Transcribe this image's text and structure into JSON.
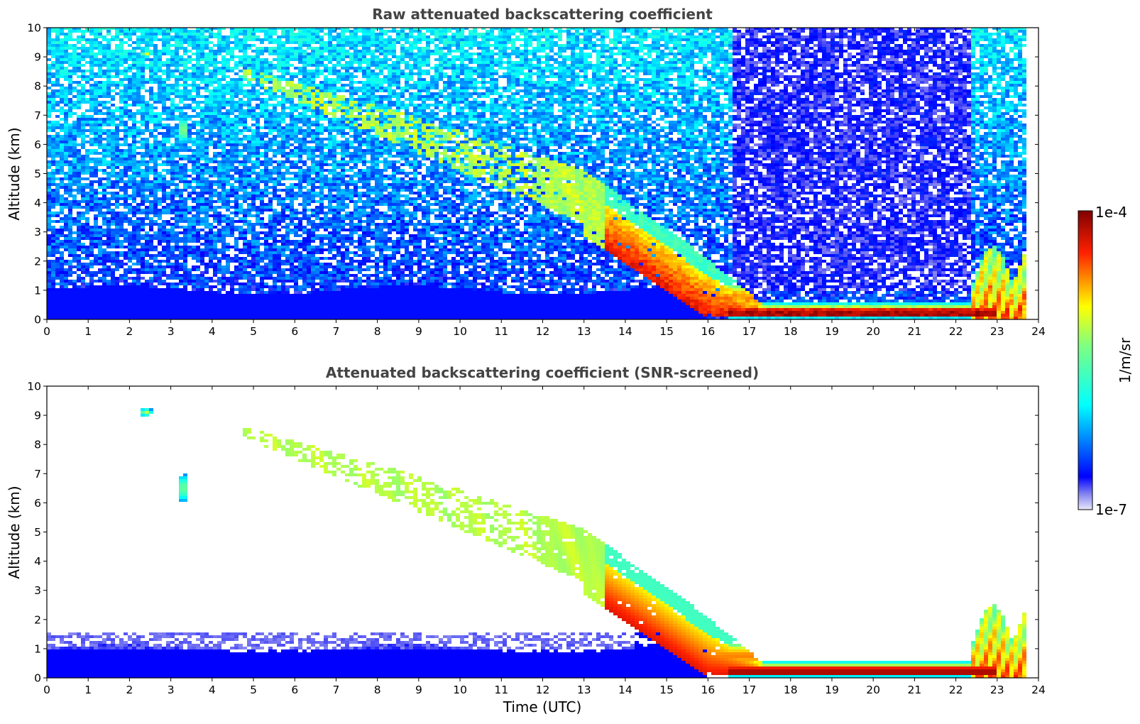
{
  "chart_data": [
    {
      "type": "heatmap",
      "title": "Raw attenuated backscattering coefficient",
      "xlabel": "",
      "ylabel": "Altitude (km)",
      "xlim": [
        0,
        24
      ],
      "ylim": [
        0,
        10
      ],
      "xticks": [
        "0",
        "1",
        "2",
        "3",
        "4",
        "5",
        "6",
        "7",
        "8",
        "9",
        "10",
        "11",
        "12",
        "13",
        "14",
        "15",
        "16",
        "17",
        "18",
        "19",
        "20",
        "21",
        "22",
        "23",
        "24"
      ],
      "yticks": [
        "0",
        "1",
        "2",
        "3",
        "4",
        "5",
        "6",
        "7",
        "8",
        "9",
        "10"
      ],
      "grid": false,
      "data_end_hour": 23.7,
      "screened": false,
      "features": [
        {
          "desc": "noise background",
          "x": [
            0,
            23.7
          ],
          "y": [
            1,
            10
          ]
        },
        {
          "desc": "boundary layer aerosol",
          "x": [
            0,
            16
          ],
          "y": [
            0,
            1
          ]
        },
        {
          "desc": "isolated cirrus",
          "x": [
            2.2,
            2.6
          ],
          "y": [
            9.0,
            9.2
          ]
        },
        {
          "desc": "isolated cirrus",
          "x": [
            3.1,
            3.5
          ],
          "y": [
            5.9,
            7.3
          ]
        },
        {
          "desc": "descending cloud band",
          "x": [
            4.8,
            16
          ],
          "y": [
            0.5,
            8.5
          ]
        },
        {
          "desc": "low cloud / rain",
          "x": [
            16,
            23
          ],
          "y": [
            0.1,
            0.5
          ]
        },
        {
          "desc": "late convective cloud",
          "x": [
            22.5,
            23.7
          ],
          "y": [
            0,
            2.6
          ]
        }
      ]
    },
    {
      "type": "heatmap",
      "title": "Attenuated backscattering coefficient (SNR-screened)",
      "xlabel": "Time (UTC)",
      "ylabel": "Altitude (km)",
      "xlim": [
        0,
        24
      ],
      "ylim": [
        0,
        10
      ],
      "xticks": [
        "0",
        "1",
        "2",
        "3",
        "4",
        "5",
        "6",
        "7",
        "8",
        "9",
        "10",
        "11",
        "12",
        "13",
        "14",
        "15",
        "16",
        "17",
        "18",
        "19",
        "20",
        "21",
        "22",
        "23",
        "24"
      ],
      "yticks": [
        "0",
        "1",
        "2",
        "3",
        "4",
        "5",
        "6",
        "7",
        "8",
        "9",
        "10"
      ],
      "grid": false,
      "data_end_hour": 23.7,
      "screened": true
    }
  ],
  "colorbar": {
    "max_label": "1e-4",
    "min_label": "1e-7",
    "label": "1/m/sr",
    "colormap": "jet",
    "range_exponent": [
      -7,
      -4
    ]
  }
}
